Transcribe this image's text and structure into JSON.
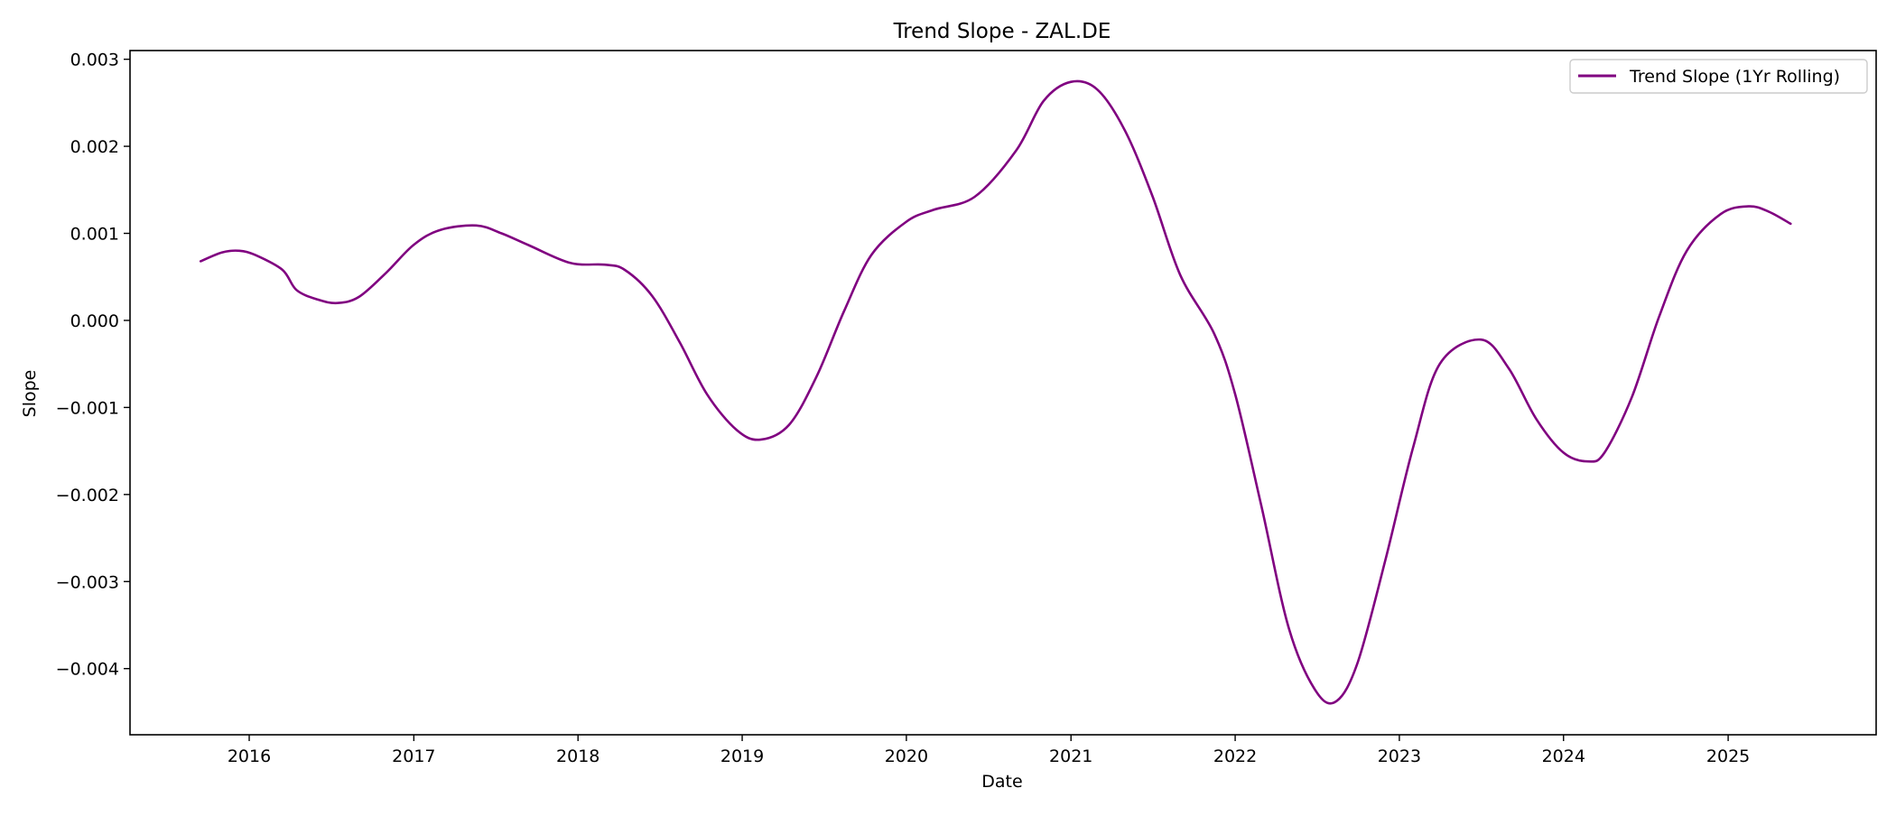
{
  "chart_data": {
    "type": "line",
    "title": "Trend Slope - ZAL.DE",
    "xlabel": "Date",
    "ylabel": "Slope",
    "x_ticks": [
      "2016",
      "2017",
      "2018",
      "2019",
      "2020",
      "2021",
      "2022",
      "2023",
      "2024",
      "2025"
    ],
    "y_ticks": [
      {
        "value": 0.003,
        "label": "0.003"
      },
      {
        "value": 0.002,
        "label": "0.002"
      },
      {
        "value": 0.001,
        "label": "0.001"
      },
      {
        "value": 0.0,
        "label": "0.000"
      },
      {
        "value": -0.001,
        "label": "−0.001"
      },
      {
        "value": -0.002,
        "label": "−0.002"
      },
      {
        "value": -0.003,
        "label": "−0.003"
      },
      {
        "value": -0.004,
        "label": "−0.004"
      }
    ],
    "xlim": [
      "2015-04-11",
      "2025-11-26"
    ],
    "ylim": [
      -0.00476,
      0.0031
    ],
    "grid": false,
    "legend_position": "top-right",
    "series": [
      {
        "name": "Trend Slope (1Yr Rolling)",
        "color": "#800080",
        "points": [
          [
            "2015-09-15",
            0.00068
          ],
          [
            "2015-11-01",
            0.00078
          ],
          [
            "2015-12-10",
            0.0008
          ],
          [
            "2016-01-15",
            0.00075
          ],
          [
            "2016-03-15",
            0.00058
          ],
          [
            "2016-04-15",
            0.00035
          ],
          [
            "2016-06-01",
            0.00024
          ],
          [
            "2016-07-15",
            0.0002
          ],
          [
            "2016-09-01",
            0.00027
          ],
          [
            "2016-11-01",
            0.00055
          ],
          [
            "2017-01-01",
            0.00087
          ],
          [
            "2017-03-01",
            0.00104
          ],
          [
            "2017-05-20",
            0.00109
          ],
          [
            "2017-07-15",
            0.001
          ],
          [
            "2017-09-15",
            0.00086
          ],
          [
            "2017-12-15",
            0.00066
          ],
          [
            "2018-03-01",
            0.00064
          ],
          [
            "2018-04-15",
            0.00058
          ],
          [
            "2018-06-15",
            0.00028
          ],
          [
            "2018-08-15",
            -0.00025
          ],
          [
            "2018-10-15",
            -0.00085
          ],
          [
            "2018-12-20",
            -0.00126
          ],
          [
            "2019-02-10",
            -0.00137
          ],
          [
            "2019-04-15",
            -0.0012
          ],
          [
            "2019-06-15",
            -0.00065
          ],
          [
            "2019-08-15",
            0.0001
          ],
          [
            "2019-10-15",
            0.00075
          ],
          [
            "2019-12-31",
            0.00113
          ],
          [
            "2020-03-01",
            0.00127
          ],
          [
            "2020-06-01",
            0.00142
          ],
          [
            "2020-09-01",
            0.00195
          ],
          [
            "2020-11-01",
            0.00252
          ],
          [
            "2021-01-01",
            0.00274
          ],
          [
            "2021-03-01",
            0.00265
          ],
          [
            "2021-05-01",
            0.00218
          ],
          [
            "2021-07-01",
            0.00143
          ],
          [
            "2021-09-01",
            0.00052
          ],
          [
            "2021-11-15",
            -0.00015
          ],
          [
            "2022-01-01",
            -0.00085
          ],
          [
            "2022-03-01",
            -0.00215
          ],
          [
            "2022-05-01",
            -0.00355
          ],
          [
            "2022-07-01",
            -0.00427
          ],
          [
            "2022-08-15",
            -0.00437
          ],
          [
            "2022-10-01",
            -0.00392
          ],
          [
            "2022-12-01",
            -0.00275
          ],
          [
            "2023-02-01",
            -0.00145
          ],
          [
            "2023-04-01",
            -0.0005
          ],
          [
            "2023-07-01",
            -0.00022
          ],
          [
            "2023-09-01",
            -0.00055
          ],
          [
            "2023-11-01",
            -0.00113
          ],
          [
            "2024-01-01",
            -0.00152
          ],
          [
            "2024-02-25",
            -0.00162
          ],
          [
            "2024-04-01",
            -0.00152
          ],
          [
            "2024-06-01",
            -0.00088
          ],
          [
            "2024-08-01",
            5e-05
          ],
          [
            "2024-10-01",
            0.0008
          ],
          [
            "2024-12-15",
            0.00122
          ],
          [
            "2025-02-15",
            0.00131
          ],
          [
            "2025-04-01",
            0.00125
          ],
          [
            "2025-05-20",
            0.00111
          ]
        ]
      }
    ]
  }
}
